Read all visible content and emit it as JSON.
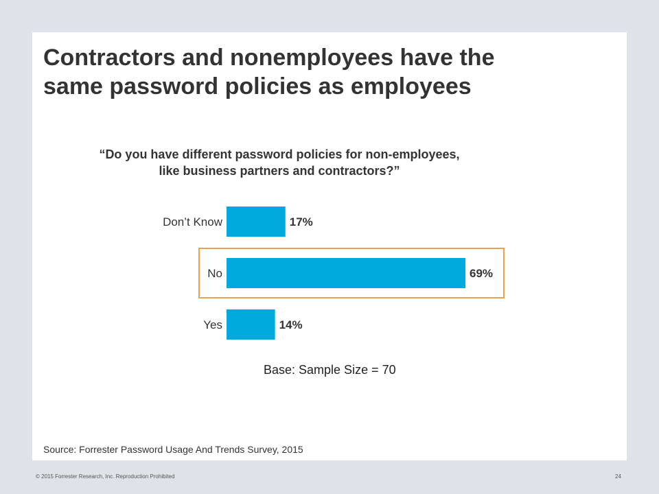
{
  "slide": {
    "title_line1": "Contractors and nonemployees have the",
    "title_line2": "same password policies as employees",
    "source": "Source: Forrester Password Usage And Trends Survey, 2015"
  },
  "footer": {
    "copyright": "© 2015 Forrester Research, Inc. Reproduction Prohibited",
    "page_number": "24"
  },
  "chart_data": {
    "type": "bar",
    "orientation": "horizontal",
    "title_line1": "“Do you have different password policies for non-employees,",
    "title_line2": "like business partners and contractors?”",
    "categories": [
      "Don’t Know",
      "No",
      "Yes"
    ],
    "values": [
      17,
      69,
      14
    ],
    "value_labels": [
      "17%",
      "69%",
      "14%"
    ],
    "highlighted_category": "No",
    "base_note": "Base: Sample Size = 70",
    "grid": false,
    "xlim": [
      0,
      100
    ],
    "colors": {
      "bar": "#00a9dc",
      "highlight_border": "#f0a04b",
      "text": "#333333"
    }
  }
}
